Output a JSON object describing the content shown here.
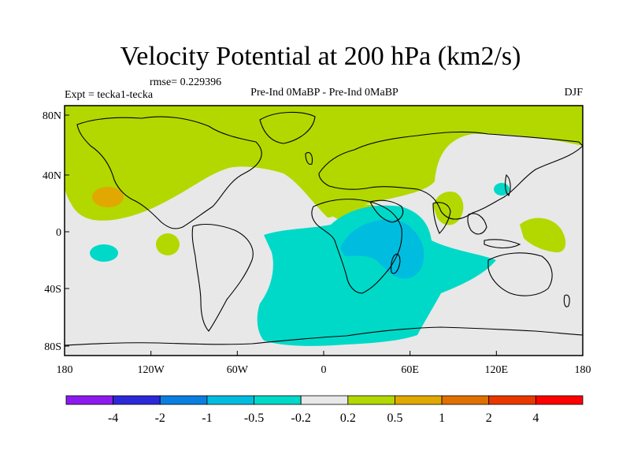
{
  "title": "Velocity Potential at 200 hPa (km2/s)",
  "rmse_label": "rmse= 0.229396",
  "expt_label": "Expt = tecka1-tecka",
  "comparison_label": "Pre-Ind 0MaBP - Pre-Ind 0MaBP",
  "season_label": "DJF",
  "axes": {
    "x_ticks": [
      "180",
      "120W",
      "60W",
      "0",
      "60E",
      "120E",
      "180"
    ],
    "y_ticks": [
      "80N",
      "40N",
      "0",
      "40S",
      "80S"
    ]
  },
  "colorbar": {
    "labels": [
      "-4",
      "-2",
      "-1",
      "-0.5",
      "-0.2",
      "0.2",
      "0.5",
      "1",
      "2",
      "4"
    ],
    "colors": [
      "#8c1aef",
      "#2b28d8",
      "#0a7fe0",
      "#00bde0",
      "#00d9c8",
      "#e8e8e8",
      "#b2d800",
      "#e0a800",
      "#e07000",
      "#e83800",
      "#ff0000"
    ]
  },
  "field_colors": {
    "background": "#e8e8e8",
    "pos_low": "#b2d800",
    "pos_mid": "#e0a800",
    "neg_low": "#00d9c8",
    "neg_mid": "#00bde0"
  }
}
